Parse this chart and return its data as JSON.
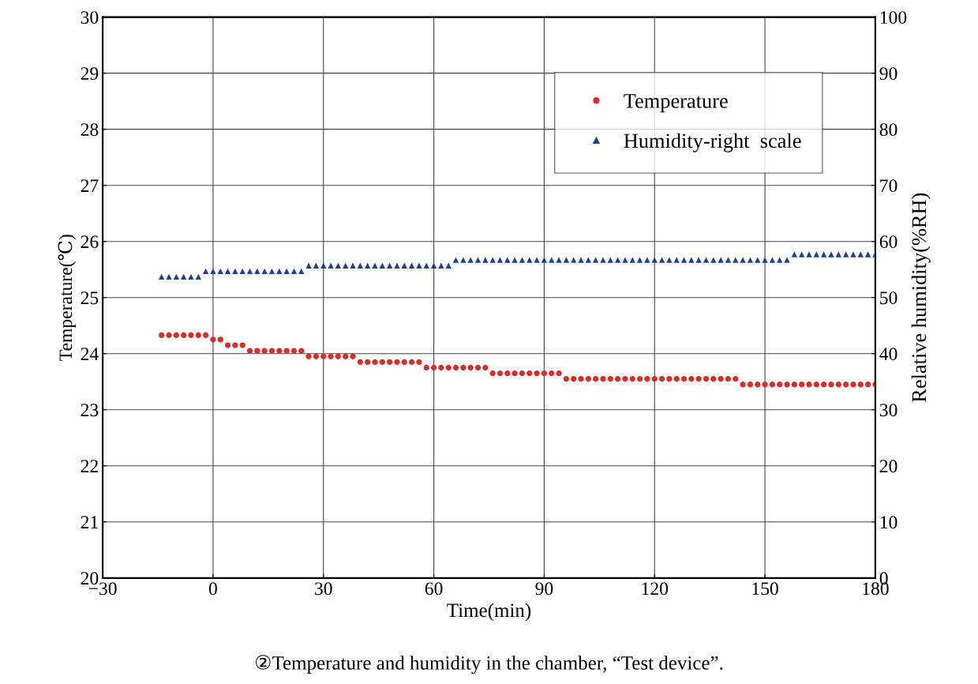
{
  "chart_data": {
    "type": "scatter",
    "x": [
      -14,
      -12,
      -10,
      -8,
      -6,
      -4,
      -2,
      0,
      2,
      4,
      6,
      8,
      10,
      12,
      14,
      16,
      18,
      20,
      22,
      24,
      26,
      28,
      30,
      32,
      34,
      36,
      38,
      40,
      42,
      44,
      46,
      48,
      50,
      52,
      54,
      56,
      58,
      60,
      62,
      64,
      66,
      68,
      70,
      72,
      74,
      76,
      78,
      80,
      82,
      84,
      86,
      88,
      90,
      92,
      94,
      96,
      98,
      100,
      102,
      104,
      106,
      108,
      110,
      112,
      114,
      116,
      118,
      120,
      122,
      124,
      126,
      128,
      130,
      132,
      134,
      136,
      138,
      140,
      142,
      144,
      146,
      148,
      150,
      152,
      154,
      156,
      158,
      160,
      162,
      164,
      166,
      168,
      170,
      172,
      174,
      176,
      178,
      180
    ],
    "series": [
      {
        "name": "Temperature",
        "color": "#d0312d",
        "marker": "circle",
        "values": [
          24.33,
          24.33,
          24.33,
          24.33,
          24.33,
          24.33,
          24.33,
          24.25,
          24.25,
          24.15,
          24.15,
          24.15,
          24.05,
          24.05,
          24.05,
          24.05,
          24.05,
          24.05,
          24.05,
          24.05,
          23.95,
          23.95,
          23.95,
          23.95,
          23.95,
          23.95,
          23.95,
          23.85,
          23.85,
          23.85,
          23.85,
          23.85,
          23.85,
          23.85,
          23.85,
          23.85,
          23.75,
          23.75,
          23.75,
          23.75,
          23.75,
          23.75,
          23.75,
          23.75,
          23.75,
          23.65,
          23.65,
          23.65,
          23.65,
          23.65,
          23.65,
          23.65,
          23.65,
          23.65,
          23.65,
          23.55,
          23.55,
          23.55,
          23.55,
          23.55,
          23.55,
          23.55,
          23.55,
          23.55,
          23.55,
          23.55,
          23.55,
          23.55,
          23.55,
          23.55,
          23.55,
          23.55,
          23.55,
          23.55,
          23.55,
          23.55,
          23.55,
          23.55,
          23.55,
          23.45,
          23.45,
          23.45,
          23.45,
          23.45,
          23.45,
          23.45,
          23.45,
          23.45,
          23.45,
          23.45,
          23.45,
          23.45,
          23.45,
          23.45,
          23.45,
          23.45,
          23.45,
          23.45
        ]
      },
      {
        "name": "Humidity-right  scale",
        "color": "#1f3f8f",
        "marker": "triangle",
        "axis": "y2",
        "values": [
          53.7,
          53.7,
          53.7,
          53.7,
          53.7,
          53.7,
          54.7,
          54.7,
          54.7,
          54.7,
          54.7,
          54.7,
          54.7,
          54.7,
          54.7,
          54.7,
          54.7,
          54.7,
          54.7,
          54.7,
          55.7,
          55.7,
          55.7,
          55.7,
          55.7,
          55.7,
          55.7,
          55.7,
          55.7,
          55.7,
          55.7,
          55.7,
          55.7,
          55.7,
          55.7,
          55.7,
          55.7,
          55.7,
          55.7,
          55.7,
          56.7,
          56.7,
          56.7,
          56.7,
          56.7,
          56.7,
          56.7,
          56.7,
          56.7,
          56.7,
          56.7,
          56.7,
          56.7,
          56.7,
          56.7,
          56.7,
          56.7,
          56.7,
          56.7,
          56.7,
          56.7,
          56.7,
          56.7,
          56.7,
          56.7,
          56.7,
          56.7,
          56.7,
          56.7,
          56.7,
          56.7,
          56.7,
          56.7,
          56.7,
          56.7,
          56.7,
          56.7,
          56.7,
          56.7,
          56.7,
          56.7,
          56.7,
          56.7,
          56.7,
          56.7,
          56.7,
          57.7,
          57.7,
          57.7,
          57.7,
          57.7,
          57.7,
          57.7,
          57.7,
          57.7,
          57.7,
          57.7,
          57.7
        ]
      }
    ],
    "xlabel": "Time(min)",
    "ylabel": "Temperature(℃)",
    "y2label": "Relative humidity(%RH)",
    "xlim": [
      -30,
      180
    ],
    "xticks": [
      {
        "value": -30,
        "label": "−30"
      },
      0,
      30,
      60,
      90,
      120,
      150,
      180
    ],
    "ylim": [
      20,
      30
    ],
    "yticks": [
      20,
      21,
      22,
      23,
      24,
      25,
      26,
      27,
      28,
      29,
      30
    ],
    "y2lim": [
      0,
      100
    ],
    "y2ticks": [
      0,
      10,
      20,
      30,
      40,
      50,
      60,
      70,
      80,
      90,
      100
    ],
    "grid": true,
    "legend": "top right",
    "annotations": [
      "②Temperature and humidity in the chamber, “Test device”."
    ]
  }
}
